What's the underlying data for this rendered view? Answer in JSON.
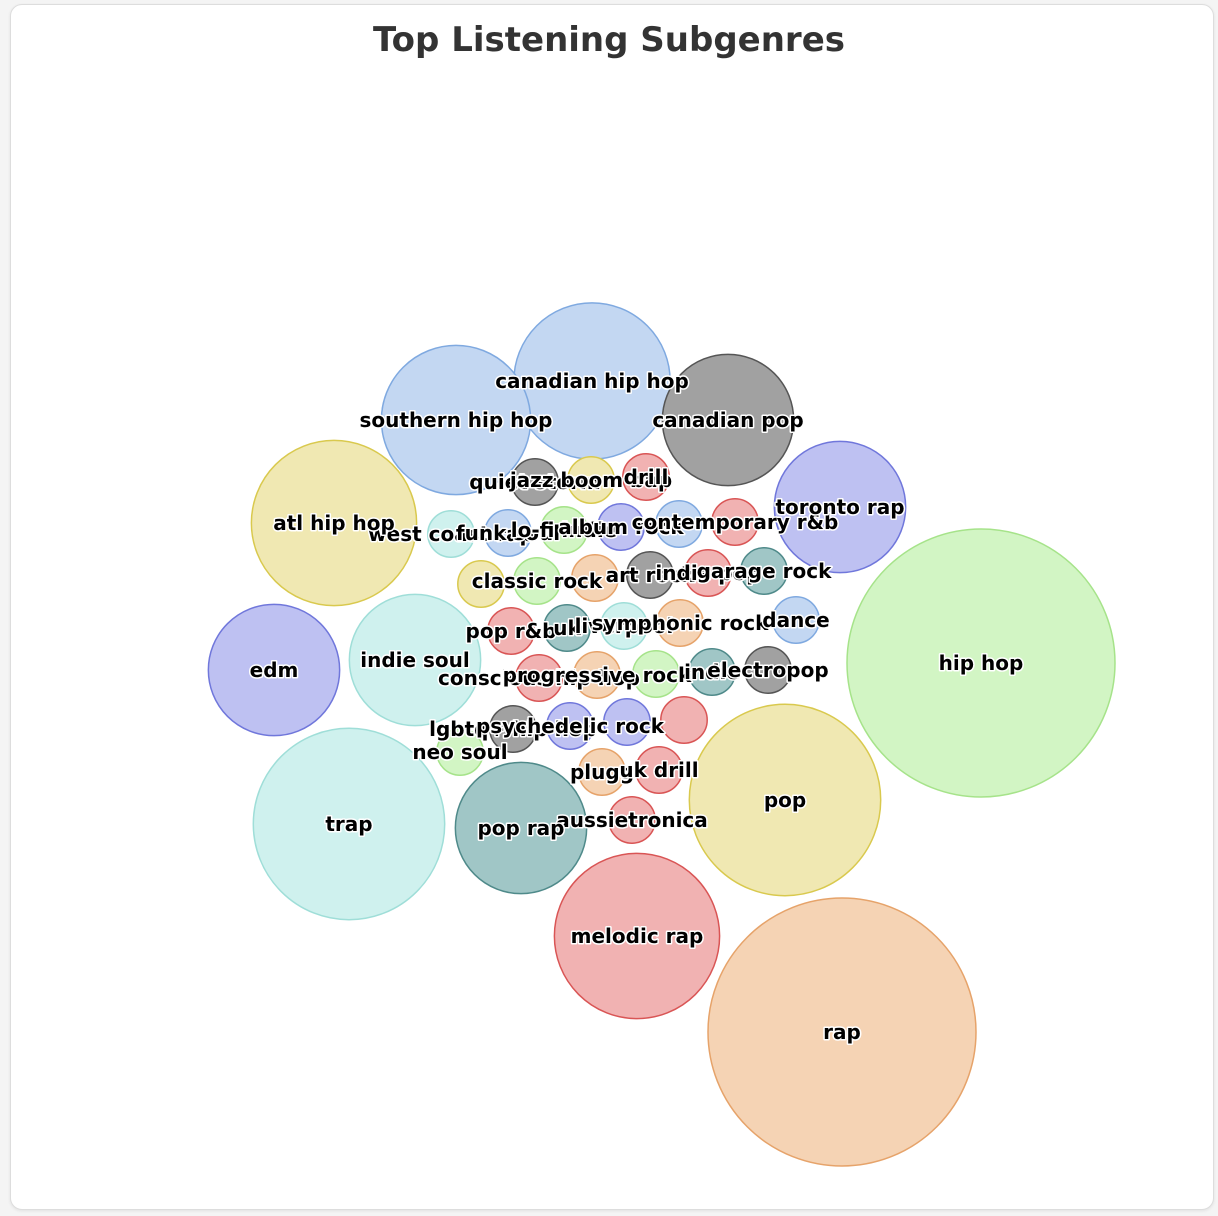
{
  "chart_data": {
    "type": "bubble",
    "title": "Top Listening Subgenres",
    "palette": {
      "yellow": "#f0e8b2",
      "blue": "#c3d7f2",
      "grey": "#a1a1a1",
      "purple": "#bec1f2",
      "green": "#d2f5c4",
      "teal": "#cff1ee",
      "darkteal": "#a0c6c6",
      "red": "#f1b2b2",
      "orange": "#f5d3b4"
    },
    "bubbles": [
      {
        "label": "hip hop",
        "value": 100,
        "color": "green"
      },
      {
        "label": "rap",
        "value": 100,
        "color": "orange"
      },
      {
        "label": "trap",
        "value": 51,
        "color": "teal"
      },
      {
        "label": "pop",
        "value": 51,
        "color": "yellow"
      },
      {
        "label": "atl hip hop",
        "value": 38,
        "color": "yellow"
      },
      {
        "label": "melodic rap",
        "value": 38,
        "color": "red"
      },
      {
        "label": "canadian hip hop",
        "value": 34,
        "color": "blue"
      },
      {
        "label": "southern hip hop",
        "value": 31,
        "color": "blue"
      },
      {
        "label": "canadian pop",
        "value": 24,
        "color": "grey"
      },
      {
        "label": "indie soul",
        "value": 24,
        "color": "teal"
      },
      {
        "label": "toronto rap",
        "value": 24,
        "color": "purple"
      },
      {
        "label": "edm",
        "value": 24,
        "color": "purple"
      },
      {
        "label": "pop rap",
        "value": 24,
        "color": "darkteal"
      },
      {
        "label": "quiet storm",
        "value": 3,
        "color": "grey"
      },
      {
        "label": "jazz boom bap",
        "value": 3,
        "color": "yellow"
      },
      {
        "label": "drill",
        "value": 3,
        "color": "red"
      },
      {
        "label": "west coast rap",
        "value": 3,
        "color": "teal"
      },
      {
        "label": "funk soul",
        "value": 3,
        "color": "blue"
      },
      {
        "label": "lo-fi indie",
        "value": 3,
        "color": "green"
      },
      {
        "label": "album rock",
        "value": 3,
        "color": "purple"
      },
      {
        "label": "contemporary r&b",
        "value": 3,
        "color": "red"
      },
      {
        "label": "classic rock",
        "value": 3,
        "color": "green"
      },
      {
        "label": "art rock",
        "value": 3,
        "color": "grey"
      },
      {
        "label": "indie pop",
        "value": 3,
        "color": "red"
      },
      {
        "label": "garage rock",
        "value": 3,
        "color": "darkteal"
      },
      {
        "label": "pop r&b",
        "value": 3,
        "color": "red"
      },
      {
        "label": "uk",
        "value": 3,
        "color": "darkteal"
      },
      {
        "label": "liverpool",
        "value": 3,
        "color": "teal"
      },
      {
        "label": "symphonic rock",
        "value": 3,
        "color": "orange"
      },
      {
        "label": "dance",
        "value": 3,
        "color": "blue"
      },
      {
        "label": "conscious hip hop",
        "value": 3,
        "color": "red"
      },
      {
        "label": "progressive rock",
        "value": 3,
        "color": "orange"
      },
      {
        "label": "indie",
        "value": 3,
        "color": "darkteal"
      },
      {
        "label": "electropop",
        "value": 3,
        "color": "grey"
      },
      {
        "label": "lgbtq+ hip hop",
        "value": 3,
        "color": "grey"
      },
      {
        "label": "psychedelic rock",
        "value": 3,
        "color": "purple"
      },
      {
        "label": "neo soul",
        "value": 3,
        "color": "green"
      },
      {
        "label": "plugg",
        "value": 3,
        "color": "orange"
      },
      {
        "label": "uk drill",
        "value": 3,
        "color": "red"
      },
      {
        "label": "aussietronica",
        "value": 3,
        "color": "red"
      }
    ]
  }
}
